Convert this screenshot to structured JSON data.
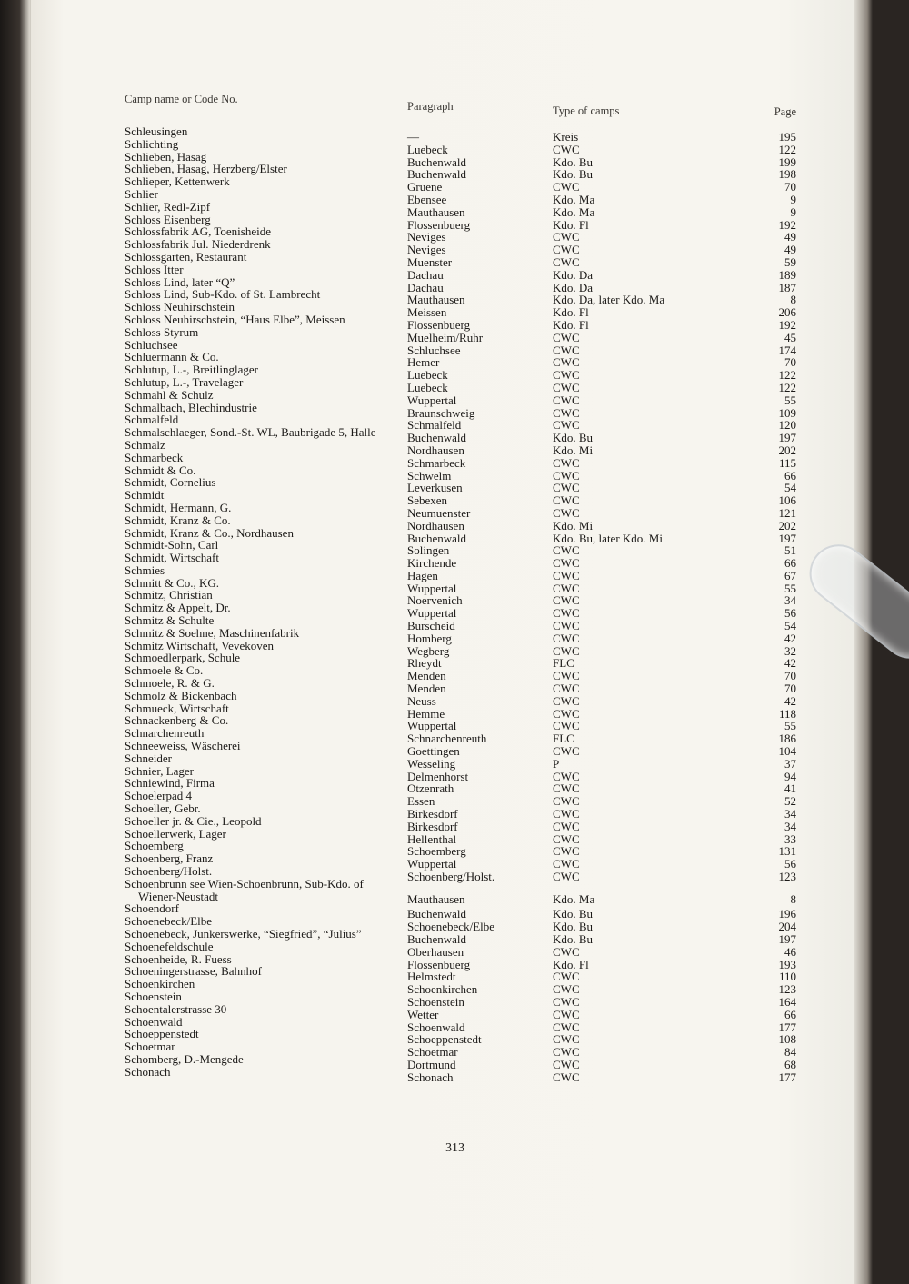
{
  "header": {
    "col_name": "Camp name or Code No.",
    "col_paragraph": "Paragraph",
    "col_type": "Type of camps",
    "col_page": "Page"
  },
  "rows": [
    {
      "name": "Schleusingen",
      "paragraph": "—",
      "type": "Kreis",
      "page": "195"
    },
    {
      "name": "Schlichting",
      "paragraph": "Luebeck",
      "type": "CWC",
      "page": "122"
    },
    {
      "name": "Schlieben, Hasag",
      "paragraph": "Buchenwald",
      "type": "Kdo. Bu",
      "page": "199"
    },
    {
      "name": "Schlieben, Hasag, Herzberg/Elster",
      "paragraph": "Buchenwald",
      "type": "Kdo. Bu",
      "page": "198"
    },
    {
      "name": "Schlieper, Kettenwerk",
      "paragraph": "Gruene",
      "type": "CWC",
      "page": "70"
    },
    {
      "name": "Schlier",
      "paragraph": "Ebensee",
      "type": "Kdo. Ma",
      "page": "9"
    },
    {
      "name": "Schlier, Redl-Zipf",
      "paragraph": "Mauthausen",
      "type": "Kdo. Ma",
      "page": "9"
    },
    {
      "name": "Schloss Eisenberg",
      "paragraph": "Flossenbuerg",
      "type": "Kdo. Fl",
      "page": "192"
    },
    {
      "name": "Schlossfabrik AG, Toenisheide",
      "paragraph": "Neviges",
      "type": "CWC",
      "page": "49"
    },
    {
      "name": "Schlossfabrik Jul. Niederdrenk",
      "paragraph": "Neviges",
      "type": "CWC",
      "page": "49"
    },
    {
      "name": "Schlossgarten, Restaurant",
      "paragraph": "Muenster",
      "type": "CWC",
      "page": "59"
    },
    {
      "name": "Schloss Itter",
      "paragraph": "Dachau",
      "type": "Kdo. Da",
      "page": "189"
    },
    {
      "name": "Schloss Lind, later “Q”",
      "paragraph": "Dachau",
      "type": "Kdo. Da",
      "page": "187"
    },
    {
      "name": "Schloss Lind, Sub-Kdo. of St. Lambrecht",
      "paragraph": "Mauthausen",
      "type": "Kdo. Da, later Kdo. Ma",
      "page": "8"
    },
    {
      "name": "Schloss Neuhirschstein",
      "paragraph": "Meissen",
      "type": "Kdo. Fl",
      "page": "206"
    },
    {
      "name": "Schloss Neuhirschstein, “Haus Elbe”, Meissen",
      "paragraph": "Flossenbuerg",
      "type": "Kdo. Fl",
      "page": "192"
    },
    {
      "name": "Schloss Styrum",
      "paragraph": "Muelheim/Ruhr",
      "type": "CWC",
      "page": "45"
    },
    {
      "name": "Schluchsee",
      "paragraph": "Schluchsee",
      "type": "CWC",
      "page": "174"
    },
    {
      "name": "Schluermann & Co.",
      "paragraph": "Hemer",
      "type": "CWC",
      "page": "70"
    },
    {
      "name": "Schlutup, L.-, Breitlinglager",
      "paragraph": "Luebeck",
      "type": "CWC",
      "page": "122"
    },
    {
      "name": "Schlutup, L.-, Travelager",
      "paragraph": "Luebeck",
      "type": "CWC",
      "page": "122"
    },
    {
      "name": "Schmahl & Schulz",
      "paragraph": "Wuppertal",
      "type": "CWC",
      "page": "55"
    },
    {
      "name": "Schmalbach, Blechindustrie",
      "paragraph": "Braunschweig",
      "type": "CWC",
      "page": "109"
    },
    {
      "name": "Schmalfeld",
      "paragraph": "Schmalfeld",
      "type": "CWC",
      "page": "120"
    },
    {
      "name": "Schmalschlaeger, Sond.-St. WL, Baubrigade 5, Halle",
      "paragraph": "Buchenwald",
      "type": "Kdo. Bu",
      "page": "197"
    },
    {
      "name": "Schmalz",
      "paragraph": "Nordhausen",
      "type": "Kdo. Mi",
      "page": "202"
    },
    {
      "name": "Schmarbeck",
      "paragraph": "Schmarbeck",
      "type": "CWC",
      "page": "115"
    },
    {
      "name": "Schmidt & Co.",
      "paragraph": "Schwelm",
      "type": "CWC",
      "page": "66"
    },
    {
      "name": "Schmidt, Cornelius",
      "paragraph": "Leverkusen",
      "type": "CWC",
      "page": "54"
    },
    {
      "name": "Schmidt",
      "paragraph": "Sebexen",
      "type": "CWC",
      "page": "106"
    },
    {
      "name": "Schmidt, Hermann, G.",
      "paragraph": "Neumuenster",
      "type": "CWC",
      "page": "121"
    },
    {
      "name": "Schmidt, Kranz & Co.",
      "paragraph": "Nordhausen",
      "type": "Kdo. Mi",
      "page": "202"
    },
    {
      "name": "Schmidt, Kranz & Co., Nordhausen",
      "paragraph": "Buchenwald",
      "type": "Kdo. Bu, later Kdo. Mi",
      "page": "197"
    },
    {
      "name": "Schmidt-Sohn, Carl",
      "paragraph": "Solingen",
      "type": "CWC",
      "page": "51"
    },
    {
      "name": "Schmidt, Wirtschaft",
      "paragraph": "Kirchende",
      "type": "CWC",
      "page": "66"
    },
    {
      "name": "Schmies",
      "paragraph": "Hagen",
      "type": "CWC",
      "page": "67"
    },
    {
      "name": "Schmitt & Co., KG.",
      "paragraph": "Wuppertal",
      "type": "CWC",
      "page": "55"
    },
    {
      "name": "Schmitz, Christian",
      "paragraph": "Noervenich",
      "type": "CWC",
      "page": "34"
    },
    {
      "name": "Schmitz & Appelt, Dr.",
      "paragraph": "Wuppertal",
      "type": "CWC",
      "page": "56"
    },
    {
      "name": "Schmitz & Schulte",
      "paragraph": "Burscheid",
      "type": "CWC",
      "page": "54"
    },
    {
      "name": "Schmitz & Soehne, Maschinenfabrik",
      "paragraph": "Homberg",
      "type": "CWC",
      "page": "42"
    },
    {
      "name": "Schmitz Wirtschaft, Vevekoven",
      "paragraph": "Wegberg",
      "type": "CWC",
      "page": "32"
    },
    {
      "name": "Schmoedlerpark, Schule",
      "paragraph": "Rheydt",
      "type": "FLC",
      "page": "42"
    },
    {
      "name": "Schmoele & Co.",
      "paragraph": "Menden",
      "type": "CWC",
      "page": "70"
    },
    {
      "name": "Schmoele, R. & G.",
      "paragraph": "Menden",
      "type": "CWC",
      "page": "70"
    },
    {
      "name": "Schmolz & Bickenbach",
      "paragraph": "Neuss",
      "type": "CWC",
      "page": "42"
    },
    {
      "name": "Schmueck, Wirtschaft",
      "paragraph": "Hemme",
      "type": "CWC",
      "page": "118"
    },
    {
      "name": "Schnackenberg & Co.",
      "paragraph": "Wuppertal",
      "type": "CWC",
      "page": "55"
    },
    {
      "name": "Schnarchenreuth",
      "paragraph": "Schnarchenreuth",
      "type": "FLC",
      "page": "186"
    },
    {
      "name": "Schneeweiss, Wäscherei",
      "paragraph": "Goettingen",
      "type": "CWC",
      "page": "104"
    },
    {
      "name": "Schneider",
      "paragraph": "Wesseling",
      "type": "P",
      "page": "37"
    },
    {
      "name": "Schnier, Lager",
      "paragraph": "Delmenhorst",
      "type": "CWC",
      "page": "94"
    },
    {
      "name": "Schniewind, Firma",
      "paragraph": "Otzenrath",
      "type": "CWC",
      "page": "41"
    },
    {
      "name": "Schoelerpad 4",
      "paragraph": "Essen",
      "type": "CWC",
      "page": "52"
    },
    {
      "name": "Schoeller, Gebr.",
      "paragraph": "Birkesdorf",
      "type": "CWC",
      "page": "34"
    },
    {
      "name": "Schoeller jr. & Cie., Leopold",
      "paragraph": "Birkesdorf",
      "type": "CWC",
      "page": "34"
    },
    {
      "name": "Schoellerwerk, Lager",
      "paragraph": "Hellenthal",
      "type": "CWC",
      "page": "33"
    },
    {
      "name": "Schoemberg",
      "paragraph": "Schoemberg",
      "type": "CWC",
      "page": "131"
    },
    {
      "name": "Schoenberg, Franz",
      "paragraph": "Wuppertal",
      "type": "CWC",
      "page": "56"
    },
    {
      "name": "Schoenberg/Holst.",
      "paragraph": "Schoenberg/Holst.",
      "type": "CWC",
      "page": "123"
    },
    {
      "name": "Schoenbrunn see Wien-Schoenbrunn, Sub-Kdo. of",
      "name_cont": "Wiener-Neustadt",
      "paragraph": "Mauthausen",
      "type": "Kdo. Ma",
      "page": "8"
    },
    {
      "name": "Schoendorf",
      "paragraph": "Buchenwald",
      "type": "Kdo. Bu",
      "page": "196"
    },
    {
      "name": "Schoenebeck/Elbe",
      "paragraph": "Schoenebeck/Elbe",
      "type": "Kdo. Bu",
      "page": "204"
    },
    {
      "name": "Schoenebeck, Junkerswerke, “Siegfried”, “Julius”",
      "paragraph": "Buchenwald",
      "type": "Kdo. Bu",
      "page": "197"
    },
    {
      "name": "Schoenefeldschule",
      "paragraph": "Oberhausen",
      "type": "CWC",
      "page": "46"
    },
    {
      "name": "Schoenheide, R. Fuess",
      "paragraph": "Flossenbuerg",
      "type": "Kdo. Fl",
      "page": "193"
    },
    {
      "name": "Schoeningerstrasse, Bahnhof",
      "paragraph": "Helmstedt",
      "type": "CWC",
      "page": "110"
    },
    {
      "name": "Schoenkirchen",
      "paragraph": "Schoenkirchen",
      "type": "CWC",
      "page": "123"
    },
    {
      "name": "Schoenstein",
      "paragraph": "Schoenstein",
      "type": "CWC",
      "page": "164"
    },
    {
      "name": "Schoentalerstrasse 30",
      "paragraph": "Wetter",
      "type": "CWC",
      "page": "66"
    },
    {
      "name": "Schoenwald",
      "paragraph": "Schoenwald",
      "type": "CWC",
      "page": "177"
    },
    {
      "name": "Schoeppenstedt",
      "paragraph": "Schoeppenstedt",
      "type": "CWC",
      "page": "108"
    },
    {
      "name": "Schoetmar",
      "paragraph": "Schoetmar",
      "type": "CWC",
      "page": "84"
    },
    {
      "name": "Schomberg, D.-Mengede",
      "paragraph": "Dortmund",
      "type": "CWC",
      "page": "68"
    },
    {
      "name": "Schonach",
      "paragraph": "Schonach",
      "type": "CWC",
      "page": "177"
    }
  ],
  "page_number": "313"
}
